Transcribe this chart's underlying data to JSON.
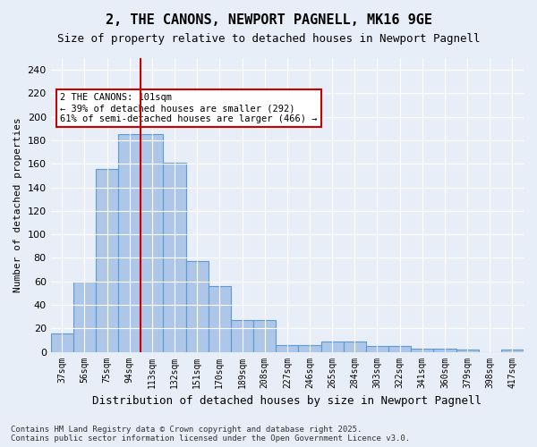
{
  "title": "2, THE CANONS, NEWPORT PAGNELL, MK16 9GE",
  "subtitle": "Size of property relative to detached houses in Newport Pagnell",
  "xlabel": "Distribution of detached houses by size in Newport Pagnell",
  "ylabel": "Number of detached properties",
  "categories": [
    "37sqm",
    "56sqm",
    "75sqm",
    "94sqm",
    "113sqm",
    "132sqm",
    "151sqm",
    "170sqm",
    "189sqm",
    "208sqm",
    "227sqm",
    "246sqm",
    "265sqm",
    "284sqm",
    "303sqm",
    "322sqm",
    "341sqm",
    "360sqm",
    "379sqm",
    "398sqm",
    "417sqm"
  ],
  "values": [
    16,
    60,
    156,
    185,
    185,
    161,
    77,
    56,
    27,
    27,
    6,
    6,
    9,
    9,
    5,
    5,
    3,
    3,
    2,
    0,
    2
  ],
  "bar_color": "#aec6e8",
  "bar_edge_color": "#5b9bd5",
  "background_color": "#e8eef7",
  "grid_color": "#ffffff",
  "vline_x": 4.0,
  "vline_color": "#cc0000",
  "annotation_text": "2 THE CANONS: 101sqm\n← 39% of detached houses are smaller (292)\n61% of semi-detached houses are larger (466) →",
  "annotation_box_color": "#ffffff",
  "annotation_box_edge": "#cc0000",
  "footer": "Contains HM Land Registry data © Crown copyright and database right 2025.\nContains public sector information licensed under the Open Government Licence v3.0.",
  "ylim": [
    0,
    250
  ],
  "yticks": [
    0,
    20,
    40,
    60,
    80,
    100,
    120,
    140,
    160,
    180,
    200,
    220,
    240
  ]
}
